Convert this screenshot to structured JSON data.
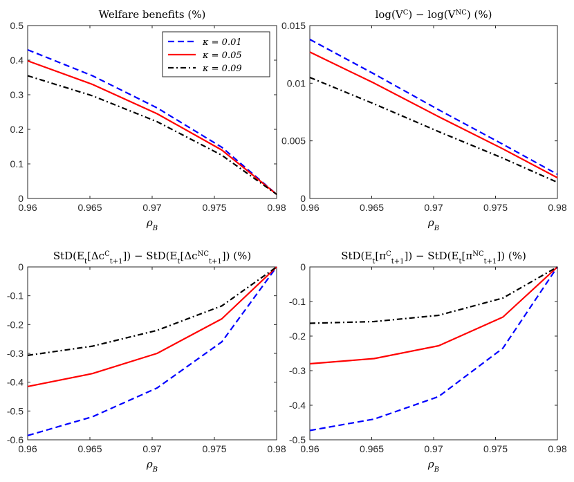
{
  "chart_data": [
    {
      "type": "line",
      "title": "Welfare benefits (%)",
      "xlabel": "ρ_B",
      "ylabel": "",
      "xlim": [
        0.96,
        0.98
      ],
      "ylim": [
        0,
        0.5
      ],
      "xticks": [
        0.96,
        0.965,
        0.97,
        0.975,
        0.98
      ],
      "xtick_labels": [
        "0.96",
        "0.965",
        "0.97",
        "0.975",
        "0.98"
      ],
      "yticks": [
        0,
        0.1,
        0.2,
        0.3,
        0.4,
        0.5
      ],
      "ytick_labels": [
        "0",
        "0.1",
        "0.2",
        "0.3",
        "0.4",
        "0.5"
      ],
      "x": [
        0.96,
        0.9652,
        0.9704,
        0.9756,
        0.98
      ],
      "legend": {
        "placement": "top-right"
      },
      "series": [
        {
          "name": "κ = 0.01",
          "color": "#0000ff",
          "style": "dashed",
          "values": [
            0.43,
            0.355,
            0.262,
            0.148,
            0.012
          ]
        },
        {
          "name": "κ = 0.05",
          "color": "#ff0000",
          "style": "solid",
          "values": [
            0.398,
            0.33,
            0.245,
            0.14,
            0.012
          ]
        },
        {
          "name": "κ = 0.09",
          "color": "#000000",
          "style": "dashdot",
          "values": [
            0.355,
            0.297,
            0.222,
            0.125,
            0.012
          ]
        }
      ]
    },
    {
      "type": "line",
      "title": "log(V^C) − log(V^NC) (%)",
      "xlabel": "ρ_B",
      "ylabel": "",
      "xlim": [
        0.96,
        0.98
      ],
      "ylim": [
        0,
        0.015
      ],
      "xticks": [
        0.96,
        0.965,
        0.97,
        0.975,
        0.98
      ],
      "xtick_labels": [
        "0.96",
        "0.965",
        "0.97",
        "0.975",
        "0.98"
      ],
      "yticks": [
        0,
        0.005,
        0.01,
        0.015
      ],
      "ytick_labels": [
        "0",
        "0.005",
        "0.01",
        "0.015"
      ],
      "x": [
        0.96,
        0.9652,
        0.9704,
        0.9756,
        0.98
      ],
      "series": [
        {
          "color": "#0000ff",
          "style": "dashed",
          "values": [
            0.0138,
            0.0108,
            0.0077,
            0.0047,
            0.0021
          ]
        },
        {
          "color": "#ff0000",
          "style": "solid",
          "values": [
            0.0127,
            0.01,
            0.0071,
            0.0043,
            0.0018
          ]
        },
        {
          "color": "#000000",
          "style": "dashdot",
          "values": [
            0.0105,
            0.0082,
            0.0058,
            0.0035,
            0.0014
          ]
        }
      ]
    },
    {
      "type": "line",
      "title": "StD(E_t[Δc^C_{t+1}]) − StD(E_t[Δc^NC_{t+1}]) (%)",
      "xlabel": "ρ_B",
      "ylabel": "",
      "xlim": [
        0.96,
        0.98
      ],
      "ylim": [
        -0.6,
        0
      ],
      "xticks": [
        0.96,
        0.965,
        0.97,
        0.975,
        0.98
      ],
      "xtick_labels": [
        "0.96",
        "0.965",
        "0.97",
        "0.975",
        "0.98"
      ],
      "yticks": [
        -0.6,
        -0.5,
        -0.4,
        -0.3,
        -0.2,
        -0.1,
        0
      ],
      "ytick_labels": [
        "-0.6",
        "-0.5",
        "-0.4",
        "-0.3",
        "-0.2",
        "-0.1",
        "0"
      ],
      "x": [
        0.96,
        0.9652,
        0.9704,
        0.9756,
        0.98
      ],
      "series": [
        {
          "color": "#0000ff",
          "style": "dashed",
          "values": [
            -0.585,
            -0.52,
            -0.42,
            -0.26,
            0
          ]
        },
        {
          "color": "#ff0000",
          "style": "solid",
          "values": [
            -0.415,
            -0.37,
            -0.3,
            -0.18,
            0
          ]
        },
        {
          "color": "#000000",
          "style": "dashdot",
          "values": [
            -0.307,
            -0.275,
            -0.22,
            -0.135,
            0
          ]
        }
      ]
    },
    {
      "type": "line",
      "title": "StD(E_t[π^C_{t+1}]) − StD(E_t[π^NC_{t+1}]) (%)",
      "xlabel": "ρ_B",
      "ylabel": "",
      "xlim": [
        0.96,
        0.98
      ],
      "ylim": [
        -0.5,
        0
      ],
      "xticks": [
        0.96,
        0.965,
        0.97,
        0.975,
        0.98
      ],
      "xtick_labels": [
        "0.96",
        "0.965",
        "0.97",
        "0.975",
        "0.98"
      ],
      "yticks": [
        -0.5,
        -0.4,
        -0.3,
        -0.2,
        -0.1,
        0
      ],
      "ytick_labels": [
        "-0.5",
        "-0.4",
        "-0.3",
        "-0.2",
        "-0.1",
        "0"
      ],
      "x": [
        0.96,
        0.9652,
        0.9704,
        0.9756,
        0.98
      ],
      "series": [
        {
          "color": "#0000ff",
          "style": "dashed",
          "values": [
            -0.473,
            -0.44,
            -0.375,
            -0.235,
            0
          ]
        },
        {
          "color": "#ff0000",
          "style": "solid",
          "values": [
            -0.28,
            -0.265,
            -0.228,
            -0.145,
            0
          ]
        },
        {
          "color": "#000000",
          "style": "dashdot",
          "values": [
            -0.163,
            -0.158,
            -0.14,
            -0.09,
            0
          ]
        }
      ]
    }
  ]
}
